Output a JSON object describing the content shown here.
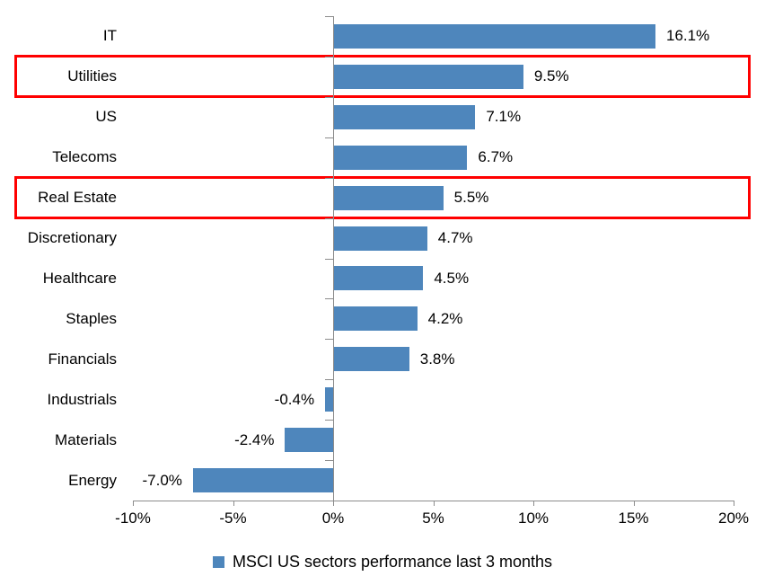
{
  "chart_data": {
    "type": "bar",
    "orientation": "horizontal",
    "title": "",
    "xlabel": "",
    "ylabel": "",
    "categories": [
      "IT",
      "Utilities",
      "US",
      "Telecoms",
      "Real Estate",
      "Discretionary",
      "Healthcare",
      "Staples",
      "Financials",
      "Industrials",
      "Materials",
      "Energy"
    ],
    "values": [
      16.1,
      9.5,
      7.1,
      6.7,
      5.5,
      4.7,
      4.5,
      4.2,
      3.8,
      -0.4,
      -2.4,
      -7.0
    ],
    "value_labels": [
      "16.1%",
      "9.5%",
      "7.1%",
      "6.7%",
      "5.5%",
      "4.7%",
      "4.5%",
      "4.2%",
      "3.8%",
      "-0.4%",
      "-2.4%",
      "-7.0%"
    ],
    "x_ticks": [
      "-10%",
      "-5%",
      "0%",
      "5%",
      "10%",
      "15%",
      "20%"
    ],
    "x_tick_values": [
      -10,
      -5,
      0,
      5,
      10,
      15,
      20
    ],
    "xlim": [
      -10,
      20
    ],
    "grid": false,
    "legend": "MSCI US sectors performance last 3 months",
    "legend_position": "bottom",
    "highlighted_categories": [
      "Utilities",
      "Real Estate"
    ]
  },
  "colors": {
    "bar": "#4E86BC",
    "highlight_box": "#FF0000",
    "axis": "#8C8C8C",
    "text": "#000000",
    "background": "#FFFFFF"
  }
}
